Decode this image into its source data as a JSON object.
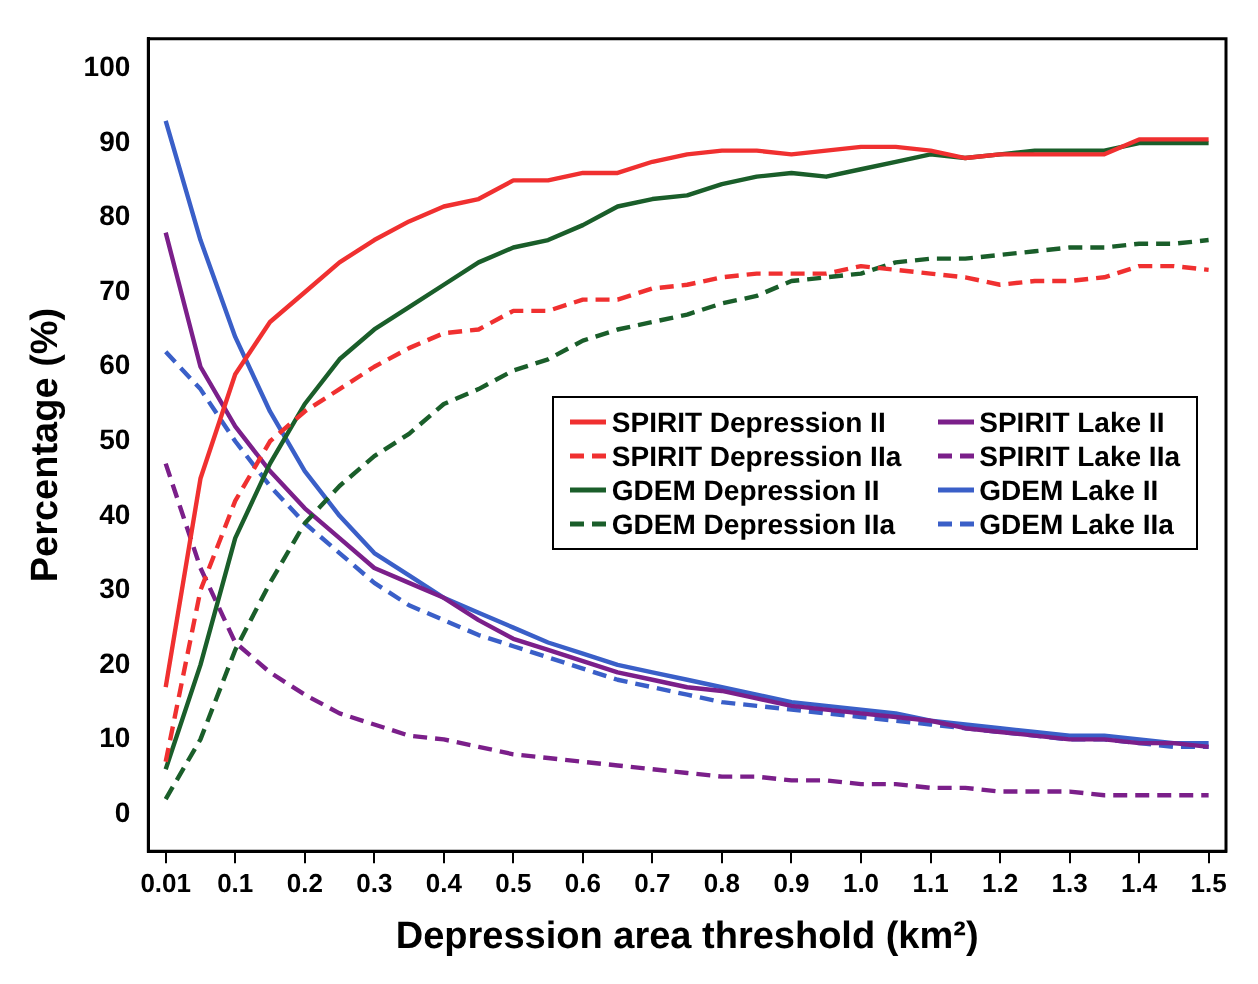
{
  "chart_data": {
    "type": "line",
    "xlabel": "Depression area threshold (km²)",
    "ylabel": "Percentage (%)",
    "categories": [
      "0.01",
      null,
      "0.1",
      null,
      "0.2",
      null,
      "0.3",
      null,
      "0.4",
      null,
      "0.5",
      null,
      "0.6",
      null,
      "0.7",
      null,
      "0.8",
      null,
      "0.9",
      null,
      "1.0",
      null,
      "1.1",
      null,
      "1.2",
      null,
      "1.3",
      null,
      "1.4",
      null,
      "1.5"
    ],
    "ylim": [
      -5,
      104
    ],
    "yticks": [
      0,
      10,
      20,
      30,
      40,
      50,
      60,
      70,
      80,
      90,
      100
    ],
    "legend": "right",
    "marker": "none",
    "series": [
      {
        "name": "SPIRIT Depression II",
        "color": "#f03030",
        "line_style": "solid",
        "values": [
          17,
          45,
          59,
          66,
          70,
          74,
          77,
          79.5,
          81.5,
          82.5,
          85,
          85,
          86,
          86,
          87.5,
          88.5,
          89,
          89,
          88.5,
          89,
          89.5,
          89.5,
          89,
          88,
          88.5,
          88.5,
          88.5,
          88.5,
          90.5,
          90.5,
          90.5
        ]
      },
      {
        "name": "SPIRIT Depression IIa",
        "color": "#f03030",
        "line_style": "dashed",
        "values": [
          7,
          30,
          42,
          50,
          54,
          57,
          60,
          62.5,
          64.5,
          65,
          67.5,
          67.5,
          69,
          69,
          70.5,
          71,
          72,
          72.5,
          72.5,
          72.5,
          73.5,
          73,
          72.5,
          72,
          71,
          71.5,
          71.5,
          72,
          73.5,
          73.5,
          73
        ]
      },
      {
        "name": "GDEM Depression II",
        "color": "#1a5e2a",
        "line_style": "solid",
        "values": [
          6,
          20,
          37,
          47,
          55,
          61,
          65,
          68,
          71,
          74,
          76,
          77,
          79,
          81.5,
          82.5,
          83,
          84.5,
          85.5,
          86,
          85.5,
          86.5,
          87.5,
          88.5,
          88,
          88.5,
          89,
          89,
          89,
          90,
          90,
          90
        ]
      },
      {
        "name": "GDEM Depression IIa",
        "color": "#1a5e2a",
        "line_style": "dashed",
        "values": [
          2,
          10,
          22,
          31,
          39,
          44,
          48,
          51,
          55,
          57,
          59.5,
          61,
          63.5,
          65,
          66,
          67,
          68.5,
          69.5,
          71.5,
          72,
          72.5,
          74,
          74.5,
          74.5,
          75,
          75.5,
          76,
          76,
          76.5,
          76.5,
          77
        ]
      },
      {
        "name": "SPIRIT Lake II",
        "color": "#7b1f8a",
        "line_style": "solid",
        "values": [
          78,
          60,
          52,
          46,
          41,
          37,
          33,
          31,
          29,
          26,
          23.5,
          22,
          20.5,
          19,
          18,
          17,
          16.5,
          15.5,
          14.5,
          14,
          13.5,
          13,
          12.5,
          11.5,
          11,
          10.5,
          10,
          10,
          9.5,
          9.5,
          9
        ]
      },
      {
        "name": "SPIRIT Lake IIa",
        "color": "#7b1f8a",
        "line_style": "dashed",
        "values": [
          47,
          33,
          23,
          19,
          16,
          13.5,
          12,
          10.5,
          10,
          9,
          8,
          7.5,
          7,
          6.5,
          6,
          5.5,
          5,
          5,
          4.5,
          4.5,
          4,
          4,
          3.5,
          3.5,
          3,
          3,
          3,
          2.5,
          2.5,
          2.5,
          2.5
        ]
      },
      {
        "name": "GDEM Lake II",
        "color": "#3a5fc8",
        "line_style": "solid",
        "values": [
          93,
          77,
          64,
          54,
          46,
          40,
          35,
          32,
          29,
          27,
          25,
          23,
          21.5,
          20,
          19,
          18,
          17,
          16,
          15,
          14.5,
          14,
          13.5,
          12.5,
          12,
          11.5,
          11,
          10.5,
          10.5,
          10,
          9.5,
          9.5
        ]
      },
      {
        "name": "GDEM Lake IIa",
        "color": "#3a5fc8",
        "line_style": "dashed",
        "values": [
          62,
          57,
          50,
          44,
          39,
          35,
          31,
          28,
          26,
          24,
          22.5,
          21,
          19.5,
          18,
          17,
          16,
          15,
          14.5,
          14,
          13.5,
          13,
          12.5,
          12,
          11.5,
          11,
          10.5,
          10,
          10,
          9.5,
          9,
          9
        ]
      }
    ]
  }
}
